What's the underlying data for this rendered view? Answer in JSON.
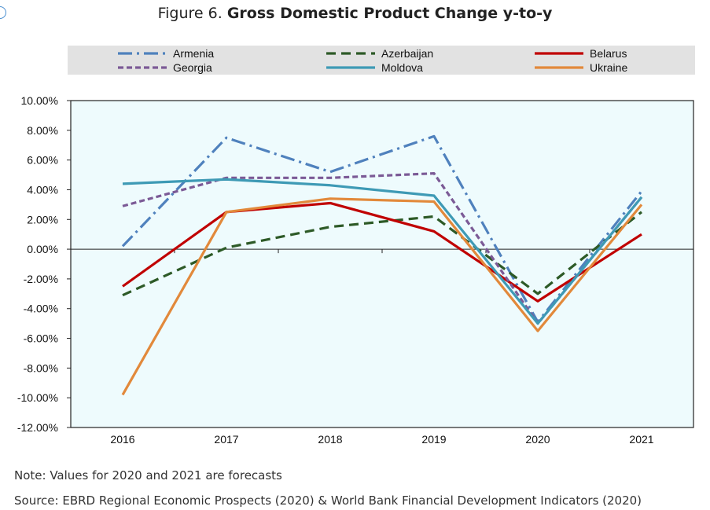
{
  "title": {
    "prefix": "Figure 6. ",
    "bold": "Gross Domestic Product Change y-to-y"
  },
  "note": "Note: Values for 2020 and 2021 are forecasts",
  "source": "Source: EBRD Regional Economic Prospects (2020) & World Bank Financial Development Indicators (2020)",
  "chart_data": {
    "type": "line",
    "x": [
      "2016",
      "2017",
      "2018",
      "2019",
      "2020",
      "2021"
    ],
    "ylim": [
      -12,
      10
    ],
    "yticks": [
      10,
      8,
      6,
      4,
      2,
      0,
      -2,
      -4,
      -6,
      -8,
      -10,
      -12
    ],
    "ytick_labels": [
      "10.00%",
      "8.00%",
      "6.00%",
      "4.00%",
      "2.00%",
      "0.00%",
      "-2.00%",
      "-4.00%",
      "-6.00%",
      "-8.00%",
      "-10.00%",
      "-12.00%"
    ],
    "grid": false,
    "legend_position": "top",
    "series": [
      {
        "name": "Armenia",
        "values": [
          0.2,
          7.5,
          5.2,
          7.6,
          -4.9,
          3.9
        ],
        "color": "#4f81bd",
        "dash": "dashdot"
      },
      {
        "name": "Azerbaijan",
        "values": [
          -3.1,
          0.1,
          1.5,
          2.2,
          -3.0,
          2.5
        ],
        "color": "#2d5a27",
        "dash": "dashed"
      },
      {
        "name": "Belarus",
        "values": [
          -2.5,
          2.5,
          3.1,
          1.2,
          -3.5,
          1.0
        ],
        "color": "#c00000",
        "dash": "solid"
      },
      {
        "name": "Georgia",
        "values": [
          2.9,
          4.8,
          4.8,
          5.1,
          -5.0,
          3.5
        ],
        "color": "#7b5a96",
        "dash": "dotted"
      },
      {
        "name": "Moldova",
        "values": [
          4.4,
          4.7,
          4.3,
          3.6,
          -5.0,
          3.5
        ],
        "color": "#3e9ab5",
        "dash": "solid"
      },
      {
        "name": "Ukraine",
        "values": [
          -9.8,
          2.5,
          3.4,
          3.2,
          -5.5,
          3.0
        ],
        "color": "#e2893b",
        "dash": "solid"
      }
    ]
  }
}
